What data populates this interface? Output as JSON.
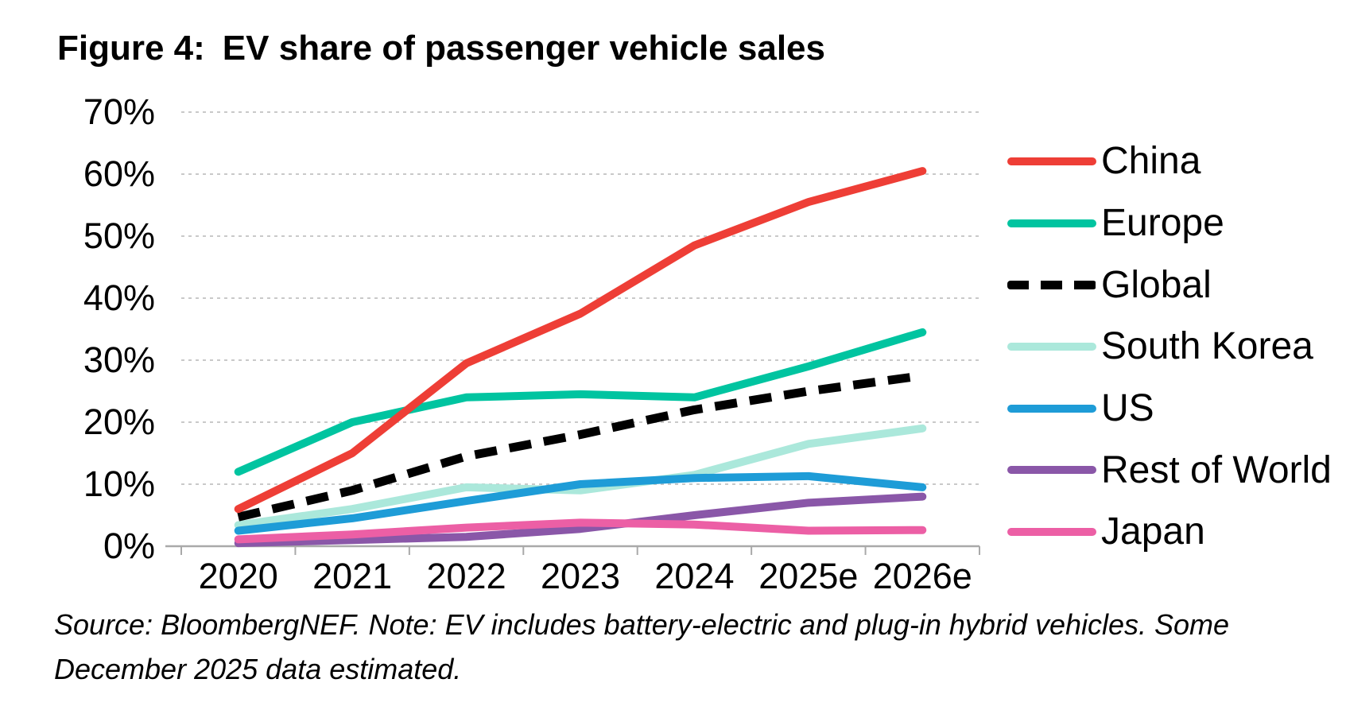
{
  "figure": {
    "title_prefix": "Figure 4:",
    "title": "EV share of passenger vehicle sales",
    "source_line1": "Source: BloombergNEF. Note: EV includes battery-electric and plug-in hybrid vehicles. Some",
    "source_line2": "December 2025 data estimated."
  },
  "chart_data": {
    "type": "line",
    "title": "Figure 4: EV share of passenger vehicle sales",
    "categories": [
      "2020",
      "2021",
      "2022",
      "2023",
      "2024",
      "2025e",
      "2026e"
    ],
    "unit": "%",
    "ylim": [
      0,
      70
    ],
    "ytick_interval": 10,
    "ytick_labels": [
      "0%",
      "10%",
      "20%",
      "30%",
      "40%",
      "50%",
      "60%",
      "70%"
    ],
    "grid": "horizontal-dashed",
    "legend_position": "right",
    "series": [
      {
        "name": "China",
        "color": "#ee3e36",
        "style": "solid",
        "values": [
          6,
          15,
          29.5,
          37.5,
          48.5,
          55.5,
          60.5
        ]
      },
      {
        "name": "Europe",
        "color": "#00c4a0",
        "style": "solid",
        "values": [
          12,
          20,
          24,
          24.5,
          24,
          29,
          34.5
        ]
      },
      {
        "name": "Global",
        "color": "#000000",
        "style": "dashed",
        "values": [
          4.7,
          9,
          14.5,
          18,
          22,
          25,
          27.5
        ]
      },
      {
        "name": "South Korea",
        "color": "#abe8db",
        "style": "solid",
        "values": [
          3.4,
          6,
          9.5,
          9,
          11.5,
          16.5,
          19
        ]
      },
      {
        "name": "US",
        "color": "#1e9cd7",
        "style": "solid",
        "values": [
          2.5,
          4.5,
          7.3,
          10,
          11,
          11.3,
          9.5
        ]
      },
      {
        "name": "Rest of World",
        "color": "#8a57a8",
        "style": "solid",
        "values": [
          0.5,
          1,
          1.5,
          2.8,
          5,
          7,
          8
        ]
      },
      {
        "name": "Japan",
        "color": "#ec5fa5",
        "style": "solid",
        "values": [
          1.1,
          1.9,
          3,
          3.8,
          3.5,
          2.5,
          2.6
        ]
      }
    ],
    "axis_color": "#a9a9a9",
    "grid_color": "#c9c9c9"
  }
}
